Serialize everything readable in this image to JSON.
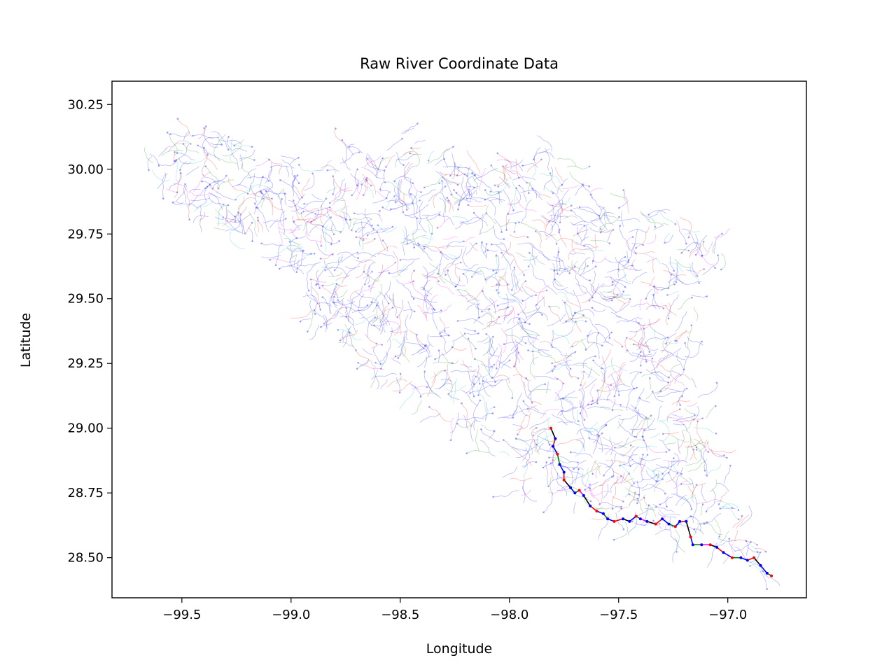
{
  "chart_data": {
    "type": "line",
    "title": "Raw River Coordinate Data",
    "xlabel": "Longitude",
    "ylabel": "Latitude",
    "xlim": [
      -99.82,
      -96.64
    ],
    "ylim": [
      28.345,
      30.34
    ],
    "xticks": [
      {
        "value": -99.5,
        "label": "−99.5"
      },
      {
        "value": -99.0,
        "label": "−99.0"
      },
      {
        "value": -98.5,
        "label": "−98.5"
      },
      {
        "value": -98.0,
        "label": "−98.0"
      },
      {
        "value": -97.5,
        "label": "−97.5"
      },
      {
        "value": -97.0,
        "label": "−97.0"
      }
    ],
    "yticks": [
      {
        "value": 28.5,
        "label": "28.50"
      },
      {
        "value": 28.75,
        "label": "28.75"
      },
      {
        "value": 29.0,
        "label": "29.00"
      },
      {
        "value": 29.25,
        "label": "29.25"
      },
      {
        "value": 29.5,
        "label": "29.50"
      },
      {
        "value": 29.75,
        "label": "29.75"
      },
      {
        "value": 30.0,
        "label": "30.00"
      },
      {
        "value": 30.25,
        "label": "30.25"
      }
    ],
    "grid": false,
    "legend": "none",
    "colors": [
      "#0000ff",
      "#ff0000",
      "#008000",
      "#000000",
      "#ff00ff",
      "#00bfbf"
    ],
    "network_outline": [
      [
        -99.68,
        30.05
      ],
      [
        -99.62,
        30.08
      ],
      [
        -99.5,
        30.1
      ],
      [
        -99.43,
        30.21
      ],
      [
        -99.35,
        30.18
      ],
      [
        -99.25,
        30.13
      ],
      [
        -99.15,
        30.1
      ],
      [
        -99.0,
        30.08
      ],
      [
        -98.85,
        30.07
      ],
      [
        -98.7,
        30.1
      ],
      [
        -98.5,
        30.14
      ],
      [
        -98.3,
        30.1
      ],
      [
        -98.12,
        30.02
      ],
      [
        -97.95,
        30.06
      ],
      [
        -97.8,
        30.08
      ],
      [
        -97.65,
        29.95
      ],
      [
        -97.48,
        29.9
      ],
      [
        -97.38,
        29.84
      ],
      [
        -97.22,
        29.85
      ],
      [
        -97.18,
        29.78
      ],
      [
        -97.0,
        29.72
      ],
      [
        -97.15,
        29.5
      ],
      [
        -97.18,
        29.3
      ],
      [
        -97.12,
        29.08
      ],
      [
        -97.05,
        28.95
      ],
      [
        -96.98,
        28.75
      ],
      [
        -96.93,
        28.62
      ],
      [
        -96.8,
        28.43
      ],
      [
        -96.95,
        28.48
      ],
      [
        -97.15,
        28.53
      ],
      [
        -97.35,
        28.62
      ],
      [
        -97.55,
        28.65
      ],
      [
        -97.72,
        28.72
      ],
      [
        -97.95,
        28.74
      ],
      [
        -98.05,
        28.85
      ],
      [
        -98.15,
        28.98
      ],
      [
        -98.35,
        29.05
      ],
      [
        -98.55,
        29.18
      ],
      [
        -98.75,
        29.3
      ],
      [
        -98.92,
        29.42
      ],
      [
        -99.0,
        29.6
      ],
      [
        -99.1,
        29.72
      ],
      [
        -99.3,
        29.75
      ],
      [
        -99.45,
        29.8
      ],
      [
        -99.6,
        29.95
      ]
    ],
    "main_channel": [
      [
        -97.81,
        29.0
      ],
      [
        -97.79,
        28.96
      ],
      [
        -97.8,
        28.93
      ],
      [
        -97.78,
        28.9
      ],
      [
        -97.77,
        28.86
      ],
      [
        -97.75,
        28.83
      ],
      [
        -97.75,
        28.8
      ],
      [
        -97.72,
        28.77
      ],
      [
        -97.7,
        28.75
      ],
      [
        -97.68,
        28.76
      ],
      [
        -97.66,
        28.74
      ],
      [
        -97.63,
        28.7
      ],
      [
        -97.6,
        28.68
      ],
      [
        -97.57,
        28.67
      ],
      [
        -97.55,
        28.65
      ],
      [
        -97.52,
        28.64
      ],
      [
        -97.48,
        28.65
      ],
      [
        -97.45,
        28.64
      ],
      [
        -97.42,
        28.66
      ],
      [
        -97.4,
        28.65
      ],
      [
        -97.37,
        28.64
      ],
      [
        -97.33,
        28.63
      ],
      [
        -97.3,
        28.65
      ],
      [
        -97.27,
        28.63
      ],
      [
        -97.24,
        28.62
      ],
      [
        -97.22,
        28.64
      ],
      [
        -97.19,
        28.64
      ],
      [
        -97.17,
        28.58
      ],
      [
        -97.16,
        28.55
      ],
      [
        -97.12,
        28.55
      ],
      [
        -97.08,
        28.55
      ],
      [
        -97.05,
        28.54
      ],
      [
        -97.02,
        28.52
      ],
      [
        -96.98,
        28.5
      ],
      [
        -96.94,
        28.5
      ],
      [
        -96.91,
        28.49
      ],
      [
        -96.88,
        28.5
      ],
      [
        -96.85,
        28.47
      ],
      [
        -96.82,
        28.44
      ],
      [
        -96.8,
        28.43
      ]
    ]
  }
}
